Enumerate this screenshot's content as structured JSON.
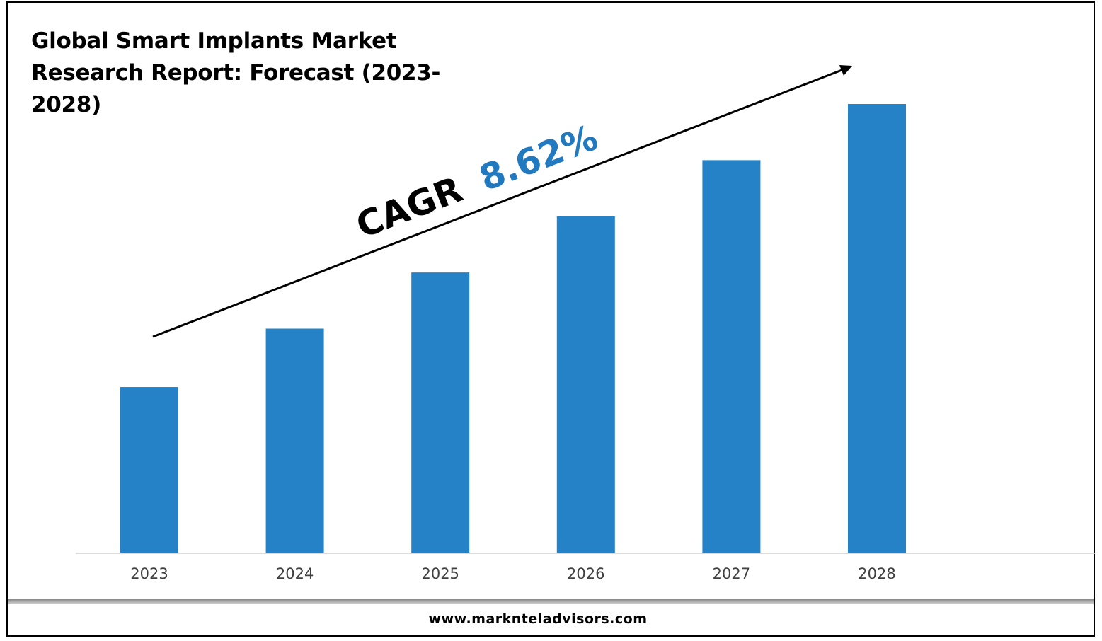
{
  "title": "Global Smart Implants Market Research Report: Forecast (2023-2028)",
  "annotation": {
    "cagr_label": "CAGR",
    "cagr_value": "8.62%"
  },
  "footer": {
    "url": "www.marknteladvisors.com"
  },
  "colors": {
    "bar": "#2682c6",
    "cagr_value": "#2179c0",
    "axis": "#d0d0d0",
    "tick_label": "#404040"
  },
  "chart_data": {
    "type": "bar",
    "categories": [
      "2023",
      "2024",
      "2025",
      "2026",
      "2027",
      "2028"
    ],
    "values": [
      37,
      50,
      62.5,
      75,
      87.5,
      100
    ],
    "ylim": [
      0,
      100
    ],
    "grid": false,
    "legend": "none"
  }
}
